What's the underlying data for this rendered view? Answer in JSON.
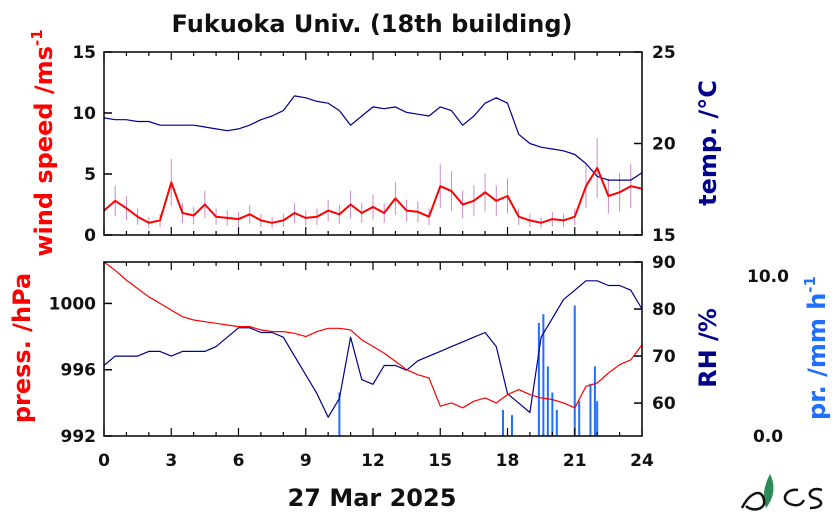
{
  "title": "Fukuoka Univ. (18th building)",
  "date_label": "27 Mar 2025",
  "x_ticks": [
    "0",
    "3",
    "6",
    "9",
    "12",
    "15",
    "18",
    "21",
    "24"
  ],
  "colors": {
    "wind": "#ff0000",
    "wind_raw": "#cc88cc",
    "temp": "#00008b",
    "press": "#ff0000",
    "rh": "#00008b",
    "precip": "#1f70ff",
    "axis": "#000000"
  },
  "top_panel": {
    "left_label": "wind speed /ms",
    "left_label_sup": "-1",
    "right_label": "temp. /°C",
    "left_ticks": [
      "0",
      "5",
      "10",
      "15"
    ],
    "right_ticks": [
      "15",
      "20",
      "25"
    ]
  },
  "bottom_panel": {
    "left_label": "press. /hPa",
    "right_label": "RH /%",
    "left_ticks": [
      "992",
      "996",
      "1000"
    ],
    "right_ticks": [
      "60",
      "70",
      "80",
      "90"
    ]
  },
  "precip_axis": {
    "label": "pr. /mm h",
    "label_sup": "-1",
    "ticks": [
      "0.0",
      "10.0"
    ]
  },
  "chart_data": [
    {
      "type": "line",
      "title": "Fukuoka Univ. (18th building)",
      "xlabel": "27 Mar 2025",
      "xlim": [
        0,
        24
      ],
      "series": [
        {
          "name": "wind speed /ms-1",
          "axis": "left",
          "ylim": [
            0,
            15
          ],
          "x": [
            0,
            0.5,
            1,
            1.5,
            2,
            2.5,
            3,
            3.5,
            4,
            4.5,
            5,
            5.5,
            6,
            6.5,
            7,
            7.5,
            8,
            8.5,
            9,
            9.5,
            10,
            10.5,
            11,
            11.5,
            12,
            12.5,
            13,
            13.5,
            14,
            14.5,
            15,
            15.5,
            16,
            16.5,
            17,
            17.5,
            18,
            18.5,
            19,
            19.5,
            20,
            20.5,
            21,
            21.5,
            22,
            22.5,
            23,
            23.5,
            24
          ],
          "values": [
            2,
            2.8,
            2.2,
            1.5,
            1,
            1.2,
            4.3,
            1.8,
            1.6,
            2.5,
            1.5,
            1.4,
            1.3,
            1.7,
            1.2,
            1,
            1.2,
            1.8,
            1.4,
            1.5,
            2,
            1.7,
            2.5,
            1.8,
            2.3,
            1.8,
            3,
            2,
            1.9,
            1.5,
            4,
            3.6,
            2.5,
            2.8,
            3.5,
            2.8,
            3.2,
            1.5,
            1.2,
            1,
            1.3,
            1.2,
            1.5,
            4,
            5.5,
            3.2,
            3.5,
            4,
            3.8
          ]
        },
        {
          "name": "temp. /°C",
          "axis": "right",
          "ylim": [
            15,
            25
          ],
          "x": [
            0,
            0.5,
            1,
            1.5,
            2,
            2.5,
            3,
            3.5,
            4,
            4.5,
            5,
            5.5,
            6,
            6.5,
            7,
            7.5,
            8,
            8.5,
            9,
            9.5,
            10,
            10.5,
            11,
            11.5,
            12,
            12.5,
            13,
            13.5,
            14,
            14.5,
            15,
            15.5,
            16,
            16.5,
            17,
            17.5,
            18,
            18.5,
            19,
            19.5,
            20,
            20.5,
            21,
            21.5,
            22,
            22.5,
            23,
            23.5,
            24
          ],
          "values": [
            21.4,
            21.3,
            21.3,
            21.2,
            21.2,
            21.0,
            21.0,
            21.0,
            21.0,
            20.9,
            20.8,
            20.7,
            20.8,
            21.0,
            21.3,
            21.5,
            21.8,
            22.6,
            22.5,
            22.3,
            22.2,
            21.8,
            21.0,
            21.5,
            22.0,
            21.9,
            22.0,
            21.7,
            21.6,
            21.5,
            22.0,
            21.8,
            21.0,
            21.5,
            22.2,
            22.5,
            22.2,
            20.5,
            20.0,
            19.8,
            19.7,
            19.6,
            19.4,
            18.9,
            18.2,
            18.0,
            18.0,
            18.0,
            18.4
          ]
        }
      ]
    },
    {
      "type": "line",
      "xlabel": "27 Mar 2025",
      "xlim": [
        0,
        24
      ],
      "series": [
        {
          "name": "press. /hPa",
          "axis": "left",
          "ylim": [
            992,
            1002.5
          ],
          "x": [
            0,
            0.5,
            1,
            1.5,
            2,
            2.5,
            3,
            3.5,
            4,
            4.5,
            5,
            5.5,
            6,
            6.5,
            7,
            7.5,
            8,
            8.5,
            9,
            9.5,
            10,
            10.5,
            11,
            11.5,
            12,
            12.5,
            13,
            13.5,
            14,
            14.5,
            15,
            15.5,
            16,
            16.5,
            17,
            17.5,
            18,
            18.5,
            19,
            19.5,
            20,
            20.5,
            21,
            21.5,
            22,
            22.5,
            23,
            23.5,
            24
          ],
          "values": [
            1002.5,
            1002,
            1001.4,
            1000.9,
            1000.4,
            1000.0,
            999.6,
            999.2,
            999.0,
            998.9,
            998.8,
            998.7,
            998.6,
            998.6,
            998.4,
            998.3,
            998.3,
            998.2,
            998.0,
            998.3,
            998.5,
            998.5,
            998.4,
            997.8,
            997.4,
            997.0,
            996.5,
            996.0,
            995.7,
            995.5,
            993.8,
            994.0,
            993.7,
            994.1,
            994.3,
            994.0,
            994.5,
            994.8,
            994.5,
            994.3,
            994.2,
            994.0,
            993.7,
            995.0,
            995.2,
            995.8,
            996.3,
            996.6,
            997.5
          ]
        },
        {
          "name": "RH /%",
          "axis": "right",
          "ylim": [
            53,
            90
          ],
          "x": [
            0,
            0.5,
            1,
            1.5,
            2,
            2.5,
            3,
            3.5,
            4,
            4.5,
            5,
            5.5,
            6,
            6.5,
            7,
            7.5,
            8,
            8.5,
            9,
            9.5,
            10,
            10.5,
            11,
            11.5,
            12,
            12.5,
            13,
            13.5,
            14,
            14.5,
            15,
            15.5,
            16,
            16.5,
            17,
            17.5,
            18,
            18.5,
            19,
            19.5,
            20,
            20.5,
            21,
            21.5,
            22,
            22.5,
            23,
            23.5,
            24
          ],
          "values": [
            68,
            70,
            70,
            70,
            71,
            71,
            70,
            71,
            71,
            71,
            72,
            74,
            76,
            76,
            75,
            75,
            74,
            70,
            66,
            62,
            57,
            61,
            74,
            65,
            64,
            68,
            68,
            67,
            69,
            70,
            71,
            72,
            73,
            74,
            75,
            72,
            62,
            60,
            58,
            74,
            78,
            82,
            84,
            86,
            86,
            85,
            85,
            84,
            80
          ]
        },
        {
          "name": "pr. /mm h-1",
          "type": "bar",
          "axis": "precip",
          "ylim": [
            0,
            10
          ],
          "x": [
            10.5,
            17.8,
            18.2,
            19.4,
            19.6,
            19.8,
            20.0,
            20.2,
            21.0,
            21.2,
            21.7,
            21.9,
            22.0
          ],
          "values": [
            2.5,
            1.5,
            1.2,
            6.5,
            7,
            4,
            2.5,
            1.5,
            7.5,
            2,
            3,
            4,
            2
          ]
        }
      ]
    }
  ]
}
